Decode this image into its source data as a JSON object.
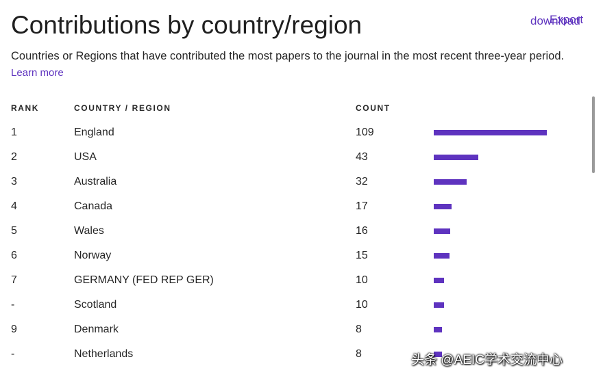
{
  "header": {
    "title": "Contributions by country/region",
    "export_label": "download",
    "export_overlap_label": "Export"
  },
  "description": {
    "text": "Countries or Regions that have contributed the most papers to the journal in the most recent three-year period. ",
    "learn_more": "Learn more"
  },
  "table": {
    "columns": {
      "rank": "RANK",
      "country": "COUNTRY / REGION",
      "count": "COUNT"
    },
    "bar_color": "#5e33bf",
    "max_count": 109,
    "rows": [
      {
        "rank": "1",
        "country": "England",
        "count": 109
      },
      {
        "rank": "2",
        "country": "USA",
        "count": 43
      },
      {
        "rank": "3",
        "country": "Australia",
        "count": 32
      },
      {
        "rank": "4",
        "country": "Canada",
        "count": 17
      },
      {
        "rank": "5",
        "country": "Wales",
        "count": 16
      },
      {
        "rank": "6",
        "country": "Norway",
        "count": 15
      },
      {
        "rank": "7",
        "country": "GERMANY (FED REP GER)",
        "count": 10
      },
      {
        "rank": "-",
        "country": "Scotland",
        "count": 10
      },
      {
        "rank": "9",
        "country": "Denmark",
        "count": 8
      },
      {
        "rank": "-",
        "country": "Netherlands",
        "count": 8
      }
    ]
  },
  "watermark": "头条 @AEIC学术交流中心"
}
